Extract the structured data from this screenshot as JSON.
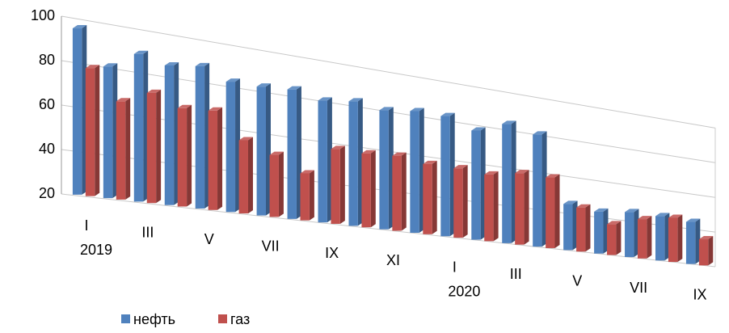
{
  "chart_data": {
    "type": "bar3d",
    "categories": [
      "I",
      null,
      "III",
      null,
      "V",
      null,
      "VII",
      null,
      "IX",
      null,
      "XI",
      null,
      "I",
      null,
      "III",
      null,
      "V",
      null,
      "VII",
      null,
      "IX"
    ],
    "year_labels": [
      "2019",
      null,
      null,
      null,
      null,
      null,
      null,
      null,
      null,
      null,
      null,
      null,
      "2020",
      null,
      null,
      null,
      null,
      null,
      null,
      null,
      null
    ],
    "series": [
      {
        "name": "нефть",
        "color": "#4f81bd",
        "values": [
          95,
          80,
          88,
          85,
          87,
          82,
          82,
          83,
          80,
          82,
          80,
          82,
          82,
          77,
          83,
          80,
          45,
          43,
          45,
          45,
          44
        ]
      },
      {
        "name": "газ",
        "color": "#c0504d",
        "values": [
          78,
          65,
          71,
          66,
          67,
          55,
          50,
          43,
          57,
          57,
          58,
          56,
          56,
          55,
          58,
          58,
          44,
          37,
          42,
          45,
          35
        ]
      }
    ],
    "ylim": [
      20,
      100
    ],
    "yticks": [
      20,
      40,
      60,
      80,
      100
    ],
    "grid": true,
    "legend": "bottom-left"
  }
}
